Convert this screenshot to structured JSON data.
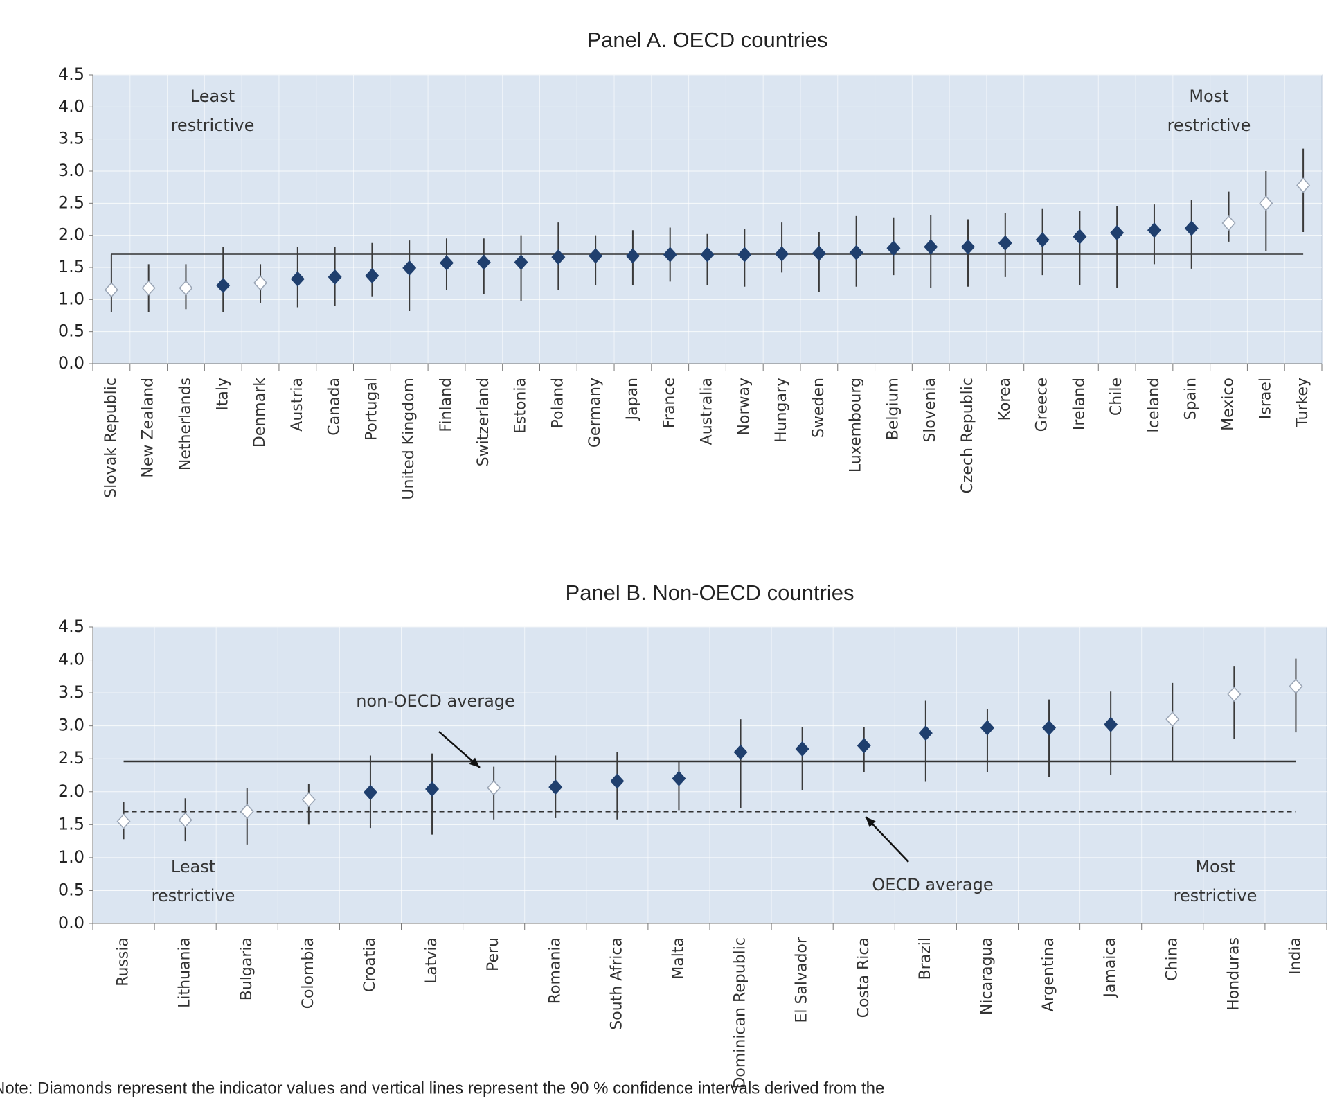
{
  "chart_data": [
    {
      "type": "errorbar",
      "title": "Panel A. OECD countries",
      "categories": [
        "Slovak Republic",
        "New Zealand",
        "Netherlands",
        "Italy",
        "Denmark",
        "Austria",
        "Canada",
        "Portugal",
        "United Kingdom",
        "Finland",
        "Switzerland",
        "Estonia",
        "Poland",
        "Germany",
        "Japan",
        "France",
        "Australia",
        "Norway",
        "Hungary",
        "Sweden",
        "Luxembourg",
        "Belgium",
        "Slovenia",
        "Czech Republic",
        "Korea",
        "Greece",
        "Ireland",
        "Chile",
        "Iceland",
        "Spain",
        "Mexico",
        "Israel",
        "Turkey"
      ],
      "values": [
        1.15,
        1.18,
        1.18,
        1.22,
        1.26,
        1.32,
        1.35,
        1.37,
        1.49,
        1.57,
        1.58,
        1.58,
        1.66,
        1.68,
        1.68,
        1.7,
        1.7,
        1.7,
        1.71,
        1.72,
        1.73,
        1.8,
        1.82,
        1.82,
        1.88,
        1.93,
        1.98,
        2.04,
        2.08,
        2.11,
        2.19,
        2.5,
        2.78
      ],
      "ci_low": [
        0.8,
        0.8,
        0.85,
        0.8,
        0.95,
        0.88,
        0.9,
        1.05,
        0.82,
        1.15,
        1.08,
        0.98,
        1.15,
        1.22,
        1.22,
        1.28,
        1.22,
        1.2,
        1.42,
        1.12,
        1.2,
        1.38,
        1.18,
        1.2,
        1.35,
        1.38,
        1.22,
        1.18,
        1.55,
        1.48,
        1.9,
        1.75,
        2.05
      ],
      "ci_high": [
        1.7,
        1.55,
        1.55,
        1.82,
        1.55,
        1.82,
        1.82,
        1.88,
        1.92,
        1.95,
        1.95,
        2.0,
        2.2,
        2.0,
        2.08,
        2.12,
        2.02,
        2.1,
        2.2,
        2.05,
        2.3,
        2.28,
        2.32,
        2.25,
        2.35,
        2.42,
        2.38,
        2.45,
        2.48,
        2.55,
        2.68,
        3.0,
        3.35
      ],
      "colors": [
        "#ffffff",
        "#ffffff",
        "#ffffff",
        "#1f3f6e",
        "#ffffff",
        "#1f3f6e",
        "#1f3f6e",
        "#1f3f6e",
        "#1f3f6e",
        "#1f3f6e",
        "#1f3f6e",
        "#1f3f6e",
        "#1f3f6e",
        "#1f3f6e",
        "#1f3f6e",
        "#1f3f6e",
        "#1f3f6e",
        "#1f3f6e",
        "#1f3f6e",
        "#1f3f6e",
        "#1f3f6e",
        "#1f3f6e",
        "#1f3f6e",
        "#1f3f6e",
        "#1f3f6e",
        "#1f3f6e",
        "#1f3f6e",
        "#1f3f6e",
        "#1f3f6e",
        "#1f3f6e",
        "#ffffff",
        "#ffffff",
        "#ffffff"
      ],
      "reference_lines": [
        {
          "value": 1.71
        }
      ],
      "least_label": [
        "Least",
        "restrictive"
      ],
      "most_label": [
        "Most",
        "restrictive"
      ],
      "ylim": [
        0,
        4.5
      ],
      "yticks": [
        {
          "value": 0,
          "label": "0.0"
        },
        {
          "value": 0.5,
          "label": "0.5"
        },
        {
          "value": 1,
          "label": "1.0"
        },
        {
          "value": 1.5,
          "label": "1.5"
        },
        {
          "value": 2,
          "label": "2.0"
        },
        {
          "value": 2.5,
          "label": "2.5"
        },
        {
          "value": 3,
          "label": "3.0"
        },
        {
          "value": 3.5,
          "label": "3.5"
        },
        {
          "value": 4,
          "label": "4.0"
        },
        {
          "value": 4.5,
          "label": "4.5"
        }
      ],
      "grid": true
    },
    {
      "type": "errorbar",
      "title": "Panel B. Non-OECD countries",
      "categories": [
        "Russia",
        "Lithuania",
        "Bulgaria",
        "Colombia",
        "Croatia",
        "Latvia",
        "Peru",
        "Romania",
        "South Africa",
        "Malta",
        "Dominican Republic",
        "El Salvador",
        "Costa Rica",
        "Brazil",
        "Nicaragua",
        "Argentina",
        "Jamaica",
        "China",
        "Honduras",
        "India"
      ],
      "values": [
        1.55,
        1.57,
        1.7,
        1.88,
        1.99,
        2.04,
        2.06,
        2.07,
        2.16,
        2.2,
        2.6,
        2.65,
        2.7,
        2.89,
        2.97,
        2.97,
        3.02,
        3.1,
        3.48,
        3.6
      ],
      "ci_low": [
        1.28,
        1.25,
        1.2,
        1.5,
        1.45,
        1.35,
        1.58,
        1.6,
        1.58,
        1.72,
        1.75,
        2.02,
        2.3,
        2.15,
        2.3,
        2.22,
        2.25,
        2.45,
        2.8,
        2.9
      ],
      "ci_high": [
        1.85,
        1.9,
        2.05,
        2.12,
        2.55,
        2.58,
        2.38,
        2.55,
        2.6,
        2.45,
        3.1,
        2.98,
        2.98,
        3.38,
        3.25,
        3.4,
        3.52,
        3.65,
        3.9,
        4.02
      ],
      "colors": [
        "#ffffff",
        "#ffffff",
        "#ffffff",
        "#ffffff",
        "#1f3f6e",
        "#1f3f6e",
        "#ffffff",
        "#1f3f6e",
        "#1f3f6e",
        "#1f3f6e",
        "#1f3f6e",
        "#1f3f6e",
        "#1f3f6e",
        "#1f3f6e",
        "#1f3f6e",
        "#1f3f6e",
        "#1f3f6e",
        "#ffffff",
        "#ffffff",
        "#ffffff"
      ],
      "reference_lines": [
        {
          "value": 2.46,
          "label": "non-OECD average"
        },
        {
          "value": 1.7,
          "label": "OECD average",
          "dashed": true
        }
      ],
      "least_label": [
        "Least",
        "restrictive"
      ],
      "most_label": [
        "Most",
        "restrictive"
      ],
      "ylim": [
        0,
        4.5
      ],
      "yticks": [
        {
          "value": 0,
          "label": "0.0"
        },
        {
          "value": 0.5,
          "label": "0.5"
        },
        {
          "value": 1,
          "label": "1.0"
        },
        {
          "value": 1.5,
          "label": "1.5"
        },
        {
          "value": 2,
          "label": "2.0"
        },
        {
          "value": 2.5,
          "label": "2.5"
        },
        {
          "value": 3,
          "label": "3.0"
        },
        {
          "value": 3.5,
          "label": "3.5"
        },
        {
          "value": 4,
          "label": "4.0"
        },
        {
          "value": 4.5,
          "label": "4.5"
        }
      ],
      "grid": true
    }
  ],
  "note": "Note: Diamonds represent the indicator values and vertical lines represent the 90 % confidence intervals derived from the"
}
